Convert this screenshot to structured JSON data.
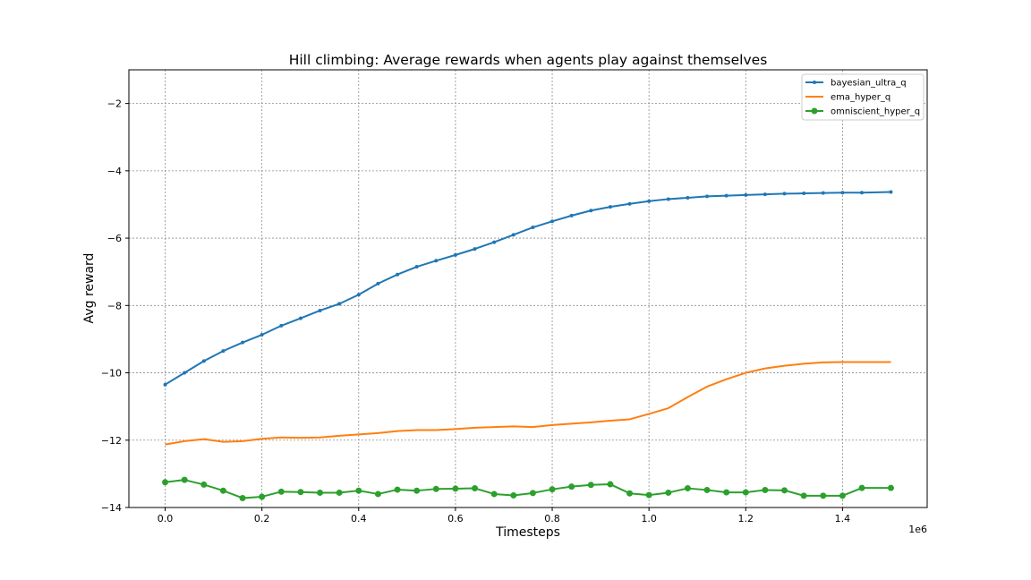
{
  "chart_data": {
    "type": "line",
    "title": "Hill climbing: Average rewards when agents play against themselves",
    "xlabel": "Timesteps",
    "ylabel": "Avg reward",
    "x_offset_label": "1e6",
    "xlim": [
      -0.075,
      1.575
    ],
    "ylim": [
      -14,
      -1
    ],
    "xticks": [
      0.0,
      0.2,
      0.4,
      0.6,
      0.8,
      1.0,
      1.2,
      1.4
    ],
    "xtick_labels": [
      "0.0",
      "0.2",
      "0.4",
      "0.6",
      "0.8",
      "1.0",
      "1.2",
      "1.4"
    ],
    "yticks": [
      -14,
      -12,
      -10,
      -8,
      -6,
      -4,
      -2
    ],
    "ytick_labels": [
      "−14",
      "−12",
      "−10",
      "−8",
      "−6",
      "−4",
      "−2"
    ],
    "grid": true,
    "legend_position": "top-right",
    "x": [
      0.0,
      0.04,
      0.08,
      0.12,
      0.16,
      0.2,
      0.24,
      0.28,
      0.32,
      0.36,
      0.4,
      0.44,
      0.48,
      0.52,
      0.56,
      0.6,
      0.64,
      0.68,
      0.72,
      0.76,
      0.8,
      0.84,
      0.88,
      0.92,
      0.96,
      1.0,
      1.04,
      1.08,
      1.12,
      1.16,
      1.2,
      1.24,
      1.28,
      1.32,
      1.36,
      1.4,
      1.44,
      1.5
    ],
    "series": [
      {
        "name": "bayesian_ultra_q",
        "color": "#1f77b4",
        "marker": "dot",
        "values": [
          -10.35,
          -10.0,
          -9.65,
          -9.35,
          -9.1,
          -8.87,
          -8.6,
          -8.38,
          -8.15,
          -7.95,
          -7.68,
          -7.35,
          -7.08,
          -6.85,
          -6.67,
          -6.5,
          -6.32,
          -6.12,
          -5.9,
          -5.68,
          -5.5,
          -5.33,
          -5.18,
          -5.07,
          -4.98,
          -4.9,
          -4.84,
          -4.8,
          -4.76,
          -4.74,
          -4.72,
          -4.7,
          -4.68,
          -4.67,
          -4.66,
          -4.65,
          -4.65,
          -4.63
        ]
      },
      {
        "name": "ema_hyper_q",
        "color": "#ff7f0e",
        "marker": "none",
        "values": [
          -12.13,
          -12.03,
          -11.97,
          -12.05,
          -12.03,
          -11.96,
          -11.92,
          -11.93,
          -11.92,
          -11.87,
          -11.83,
          -11.79,
          -11.73,
          -11.7,
          -11.7,
          -11.67,
          -11.63,
          -11.61,
          -11.59,
          -11.61,
          -11.55,
          -11.51,
          -11.47,
          -11.42,
          -11.38,
          -11.22,
          -11.05,
          -10.72,
          -10.41,
          -10.19,
          -10.0,
          -9.87,
          -9.79,
          -9.73,
          -9.69,
          -9.68,
          -9.68,
          -9.68
        ]
      },
      {
        "name": "omniscient_hyper_q",
        "color": "#2ca02c",
        "marker": "circle",
        "values": [
          -13.25,
          -13.18,
          -13.32,
          -13.5,
          -13.72,
          -13.68,
          -13.53,
          -13.54,
          -13.56,
          -13.56,
          -13.5,
          -13.6,
          -13.47,
          -13.5,
          -13.45,
          -13.44,
          -13.43,
          -13.6,
          -13.64,
          -13.57,
          -13.46,
          -13.38,
          -13.33,
          -13.31,
          -13.58,
          -13.63,
          -13.56,
          -13.43,
          -13.48,
          -13.55,
          -13.55,
          -13.48,
          -13.49,
          -13.65,
          -13.65,
          -13.65,
          -13.42,
          -13.42
        ]
      }
    ]
  }
}
